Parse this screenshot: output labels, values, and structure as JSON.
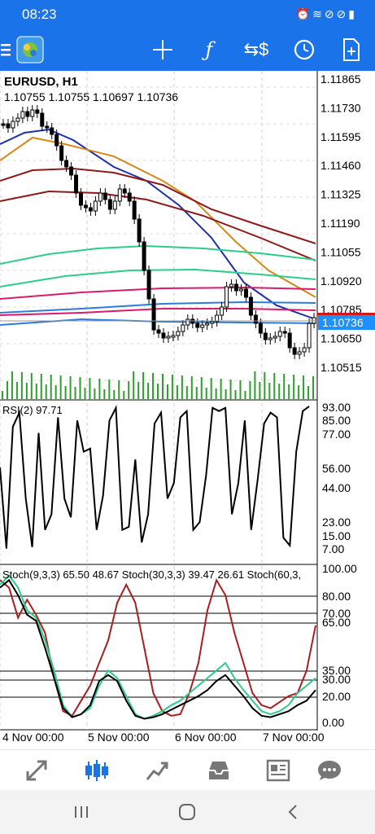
{
  "status": {
    "time": "08:23",
    "icons": [
      "alarm-icon",
      "wifi-icon",
      "no-disturb-icon",
      "blocked-icon",
      "battery-icon"
    ]
  },
  "toolbar": {
    "items": [
      "menu-icon",
      "app-logo-icon",
      "crosshair-icon",
      "indicator-f-icon",
      "symbol-icon",
      "clock-icon",
      "add-document-icon"
    ]
  },
  "chart": {
    "symbol": "EURUSD, H1",
    "ohlc": "1.10755 1.10755 1.10697 1.10736",
    "price_labels": [
      "1.11865",
      "1.11730",
      "1.11595",
      "1.11460",
      "1.11325",
      "1.11190",
      "1.11055",
      "1.10920",
      "1.10785",
      "1.10650",
      "1.10515"
    ],
    "current_price": "1.10736",
    "rsi_title": "RSI(2) 97.71",
    "rsi_labels": [
      "93.00",
      "85.00",
      "77.00",
      "56.00",
      "44.00",
      "23.00",
      "15.00",
      "7.00"
    ],
    "stoch_title": "Stoch(9,3,3) 65.50 48.67 Stoch(30,3,3) 39.47 26.61 Stoch(60,3,",
    "stoch_labels": [
      "100.00",
      "80.00",
      "70.00",
      "65.00",
      "35.00",
      "30.00",
      "20.00",
      "0.00"
    ],
    "time_labels": [
      "4 Nov 00:00",
      "5 Nov 00:00",
      "6 Nov 00:00",
      "7 Nov 00:00"
    ],
    "colors": {
      "bear_candle": "#000000",
      "volume": "#2e9e2e",
      "ma_blue": "#1f2fa8",
      "ma_orange": "#d48a1a",
      "ma_darkred": "#8b1a1a",
      "ma_green": "#2ecc8a",
      "ma_pink": "#d81b6a",
      "ma_lightblue": "#2c7cd8",
      "price_tag": "#1e90ff",
      "stoch_red": "#aa1e1e",
      "stoch_green": "#2ecc8a"
    }
  },
  "nav": {
    "items": [
      "trade-arrows-icon",
      "candles-icon",
      "chart-line-icon",
      "inbox-icon",
      "news-icon",
      "chat-icon"
    ],
    "active": "candles-icon"
  },
  "system_nav": {
    "items": [
      "recent-apps-icon",
      "home-icon",
      "back-icon"
    ]
  }
}
